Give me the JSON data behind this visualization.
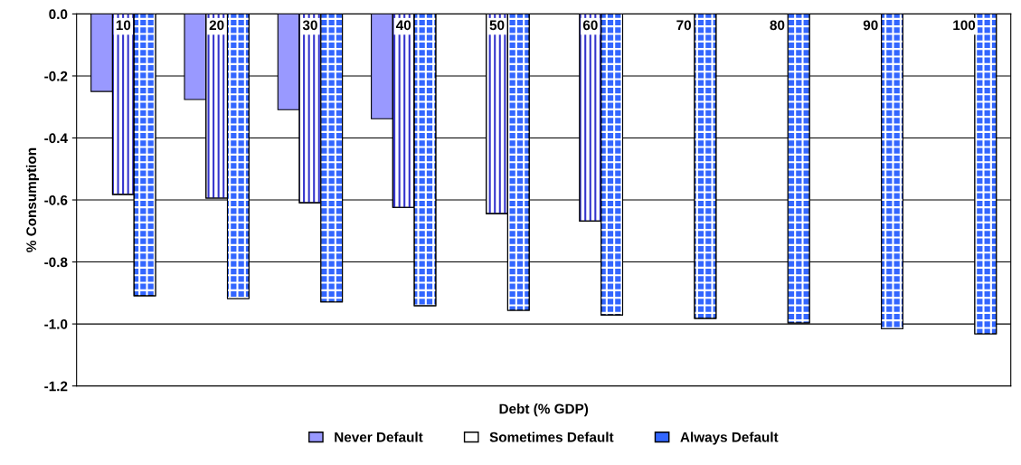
{
  "chart_data": {
    "type": "bar",
    "xlabel": "Debt (% GDP)",
    "ylabel": "% Consumption",
    "categories": [
      "10",
      "20",
      "30",
      "40",
      "50",
      "60",
      "70",
      "80",
      "90",
      "100"
    ],
    "series": [
      {
        "name": "Never Default",
        "color": "#9999ff",
        "values": [
          -0.25,
          -0.276,
          -0.309,
          -0.338,
          null,
          null,
          null,
          null,
          null,
          null
        ]
      },
      {
        "name": "Sometimes Default",
        "color": "#ffffff",
        "values": [
          -0.582,
          -0.594,
          -0.609,
          -0.624,
          -0.644,
          -0.668,
          null,
          null,
          null,
          null
        ]
      },
      {
        "name": "Always Default",
        "color": "#3366ff",
        "values": [
          -0.909,
          -0.918,
          -0.929,
          -0.941,
          -0.956,
          -0.971,
          -0.982,
          -0.997,
          -1.015,
          -1.032
        ]
      }
    ],
    "ylim": [
      -1.2,
      0
    ],
    "yticks": [
      {
        "value": -1.2,
        "label": "-1.2"
      },
      {
        "value": -1.0,
        "label": "-1.0"
      },
      {
        "value": -0.8,
        "label": "-0.8"
      },
      {
        "value": -0.6,
        "label": "-0.6"
      },
      {
        "value": -0.4,
        "label": "-0.4"
      },
      {
        "value": -0.2,
        "label": "-0.2"
      },
      {
        "value": 0,
        "label": "0.0"
      }
    ],
    "grid": "y",
    "legend": "bottom"
  }
}
